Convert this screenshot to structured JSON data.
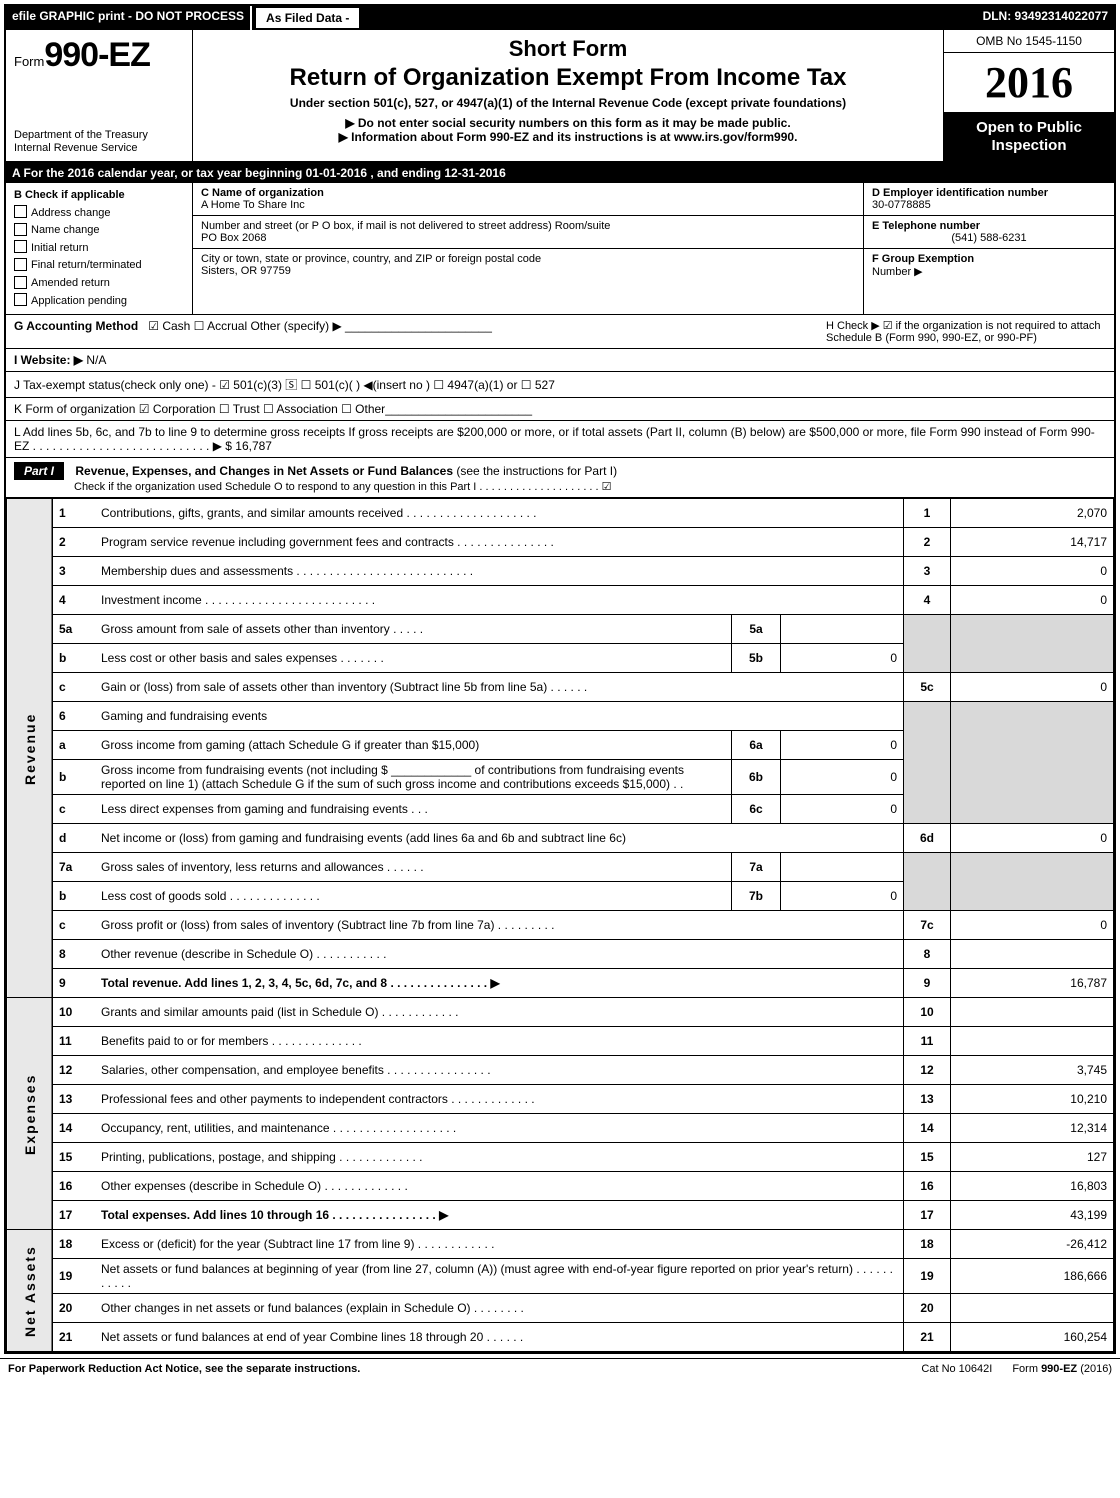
{
  "topbar": {
    "efile": "efile GRAPHIC print - DO NOT PROCESS",
    "asfiled": "As Filed Data -",
    "dln": "DLN: 93492314022077"
  },
  "header": {
    "form_prefix": "Form",
    "form_number": "990-EZ",
    "short_form": "Short Form",
    "title": "Return of Organization Exempt From Income Tax",
    "subtitle": "Under section 501(c), 527, or 4947(a)(1) of the Internal Revenue Code (except private foundations)",
    "note1": "▶ Do not enter social security numbers on this form as it may be made public.",
    "note2": "▶ Information about Form 990-EZ and its instructions is at www.irs.gov/form990.",
    "dept1": "Department of the Treasury",
    "dept2": "Internal Revenue Service",
    "omb": "OMB No 1545-1150",
    "year": "2016",
    "inspect1": "Open to Public",
    "inspect2": "Inspection"
  },
  "row_a": "A  For the 2016 calendar year, or tax year beginning 01-01-2016            , and ending 12-31-2016",
  "section_b": {
    "label": "B  Check if applicable",
    "items": [
      "Address change",
      "Name change",
      "Initial return",
      "Final return/terminated",
      "Amended return",
      "Application pending"
    ]
  },
  "section_c": {
    "name_label": "C Name of organization",
    "name": "A Home To Share Inc",
    "street_label": "Number and street (or P  O  box, if mail is not delivered to street address)  Room/suite",
    "street": "PO Box 2068",
    "city_label": "City or town, state or province, country, and ZIP or foreign postal code",
    "city": "Sisters, OR  97759"
  },
  "section_d": {
    "ein_label": "D Employer identification number",
    "ein": "30-0778885",
    "tel_label": "E Telephone number",
    "tel": "(541) 588-6231",
    "grp_label": "F Group Exemption",
    "grp2": "Number    ▶"
  },
  "g": {
    "label": "G Accounting Method",
    "opts": "☑ Cash   ☐ Accrual   Other (specify) ▶",
    "h_text": "H   Check ▶   ☑  if the organization is not required to attach Schedule B (Form 990, 990-EZ, or 990-PF)"
  },
  "i": {
    "label": "I Website: ▶",
    "val": "N/A"
  },
  "j": "J Tax-exempt status(check only one) - ☑ 501(c)(3) 🅂 ☐  501(c)(  ) ◀(insert no ) ☐ 4947(a)(1) or  ☐ 527",
  "k": "K Form of organization    ☑ Corporation   ☐ Trust   ☐ Association   ☐ Other",
  "l": "L Add lines 5b, 6c, and 7b to line 9 to determine gross receipts  If gross receipts are $200,000 or more, or if total assets (Part II, column (B) below) are $500,000 or more, file Form 990 instead of Form 990-EZ  .  .  .  .  .  .  .  .  .  .  .  .  .  .  .  .  .  .  .  .  .  .  .  .  .  .  . ▶ $ 16,787",
  "part1": {
    "tab": "Part I",
    "title": "Revenue, Expenses, and Changes in Net Assets or Fund Balances",
    "title_note": "(see the instructions for Part I)",
    "sub": "Check if the organization used Schedule O to respond to any question in this Part I .  .  .  .  .  .  .  .  .  .  .  .  .  .  .  .  .  .  .  .   ☑"
  },
  "side": {
    "rev": "Revenue",
    "exp": "Expenses",
    "na": "Net Assets"
  },
  "lines": {
    "l1": {
      "n": "1",
      "d": "Contributions, gifts, grants, and similar amounts received  .  .  .  .  .  .  .  .  .  .  .  .  .  .  .  .  .  .  .  .",
      "ln": "1",
      "amt": "2,070"
    },
    "l2": {
      "n": "2",
      "d": "Program service revenue including government fees and contracts  .  .  .  .  .  .  .  .  .  .  .  .  .  .  .",
      "ln": "2",
      "amt": "14,717"
    },
    "l3": {
      "n": "3",
      "d": "Membership dues and assessments  .  .  .  .  .  .  .  .  .  .  .  .  .  .  .  .  .  .  .  .  .  .  .  .  .  .  .",
      "ln": "3",
      "amt": "0"
    },
    "l4": {
      "n": "4",
      "d": "Investment income  .  .  .  .  .  .  .  .  .  .  .  .  .  .  .  .  .  .  .  .  .  .  .  .  .  .",
      "ln": "4",
      "amt": "0"
    },
    "l5a": {
      "n": "5a",
      "d": "Gross amount from sale of assets other than inventory  .  .  .  .  .",
      "sn": "5a",
      "sv": ""
    },
    "l5b": {
      "n": "b",
      "d": "Less  cost or other basis and sales expenses  .  .  .  .  .  .  .",
      "sn": "5b",
      "sv": "0"
    },
    "l5c": {
      "n": "c",
      "d": "Gain or (loss) from sale of assets other than inventory (Subtract line 5b from line 5a) .  .  .  .  .  .",
      "ln": "5c",
      "amt": "0"
    },
    "l6": {
      "n": "6",
      "d": "Gaming and fundraising events"
    },
    "l6a": {
      "n": "a",
      "d": "Gross income from gaming (attach Schedule G if greater than $15,000)",
      "sn": "6a",
      "sv": "0"
    },
    "l6b": {
      "n": "b",
      "d": "Gross income from fundraising events (not including $ ____________ of contributions from fundraising events reported on line 1) (attach Schedule G if the sum of such gross income and contributions exceeds $15,000)   .  .",
      "sn": "6b",
      "sv": "0"
    },
    "l6c": {
      "n": "c",
      "d": "Less  direct expenses from gaming and fundraising events       .  .  .",
      "sn": "6c",
      "sv": "0"
    },
    "l6d": {
      "n": "d",
      "d": "Net income or (loss) from gaming and fundraising events (add lines 6a and 6b and subtract line 6c)",
      "ln": "6d",
      "amt": "0"
    },
    "l7a": {
      "n": "7a",
      "d": "Gross sales of inventory, less returns and allowances  .  .  .  .  .  .",
      "sn": "7a",
      "sv": ""
    },
    "l7b": {
      "n": "b",
      "d": "Less  cost of goods sold           .  .  .  .  .  .  .  .  .  .  .  .  .  .",
      "sn": "7b",
      "sv": "0"
    },
    "l7c": {
      "n": "c",
      "d": "Gross profit or (loss) from sales of inventory (Subtract line 7b from line 7a) .  .  .  .  .  .  .  .  .",
      "ln": "7c",
      "amt": "0"
    },
    "l8": {
      "n": "8",
      "d": "Other revenue (describe in Schedule O)                       .  .  .  .  .  .  .  .  .  .  .",
      "ln": "8",
      "amt": ""
    },
    "l9": {
      "n": "9",
      "d": "Total revenue. Add lines 1, 2, 3, 4, 5c, 6d, 7c, and 8  .  .  .  .  .  .  .  .  .  .  .  .  .  .  .     ▶",
      "ln": "9",
      "amt": "16,787",
      "bold": true
    },
    "l10": {
      "n": "10",
      "d": "Grants and similar amounts paid (list in Schedule O)           .  .  .  .  .  .  .  .  .  .  .  .",
      "ln": "10",
      "amt": ""
    },
    "l11": {
      "n": "11",
      "d": "Benefits paid to or for members                     .  .  .  .  .  .  .  .  .  .  .  .  .  .",
      "ln": "11",
      "amt": ""
    },
    "l12": {
      "n": "12",
      "d": "Salaries, other compensation, and employee benefits  .  .  .  .  .  .  .  .  .  .  .  .  .  .  .  .",
      "ln": "12",
      "amt": "3,745"
    },
    "l13": {
      "n": "13",
      "d": "Professional fees and other payments to independent contractors   .  .  .  .  .  .  .  .  .  .  .  .  .",
      "ln": "13",
      "amt": "10,210"
    },
    "l14": {
      "n": "14",
      "d": "Occupancy, rent, utilities, and maintenance  .  .  .  .  .  .  .  .  .  .  .  .  .  .  .  .  .  .  .",
      "ln": "14",
      "amt": "12,314"
    },
    "l15": {
      "n": "15",
      "d": "Printing, publications, postage, and shipping              .  .  .  .  .  .  .  .  .  .  .  .  .",
      "ln": "15",
      "amt": "127"
    },
    "l16": {
      "n": "16",
      "d": "Other expenses (describe in Schedule O)                 .  .  .  .  .  .  .  .  .  .  .  .  .",
      "ln": "16",
      "amt": "16,803"
    },
    "l17": {
      "n": "17",
      "d": "Total expenses. Add lines 10 through 16          .  .  .  .  .  .  .  .  .  .  .  .  .  .  .  . ▶",
      "ln": "17",
      "amt": "43,199",
      "bold": true
    },
    "l18": {
      "n": "18",
      "d": "Excess or (deficit) for the year (Subtract line 17 from line 9)       .  .  .  .  .  .  .  .  .  .  .  .",
      "ln": "18",
      "amt": "-26,412"
    },
    "l19": {
      "n": "19",
      "d": "Net assets or fund balances at beginning of year (from line 27, column (A)) (must agree with end-of-year figure reported on prior year's return)               .  .  .  .  .  .  .  .  .  .  .",
      "ln": "19",
      "amt": "186,666"
    },
    "l20": {
      "n": "20",
      "d": "Other changes in net assets or fund balances (explain in Schedule O)     .  .  .  .  .  .  .  .",
      "ln": "20",
      "amt": ""
    },
    "l21": {
      "n": "21",
      "d": "Net assets or fund balances at end of year  Combine lines 18 through 20         .  .  .  .  .  .",
      "ln": "21",
      "amt": "160,254"
    }
  },
  "footer": {
    "left": "For Paperwork Reduction Act Notice, see the separate instructions.",
    "mid": "Cat No  10642I",
    "right": "Form 990-EZ (2016)"
  }
}
